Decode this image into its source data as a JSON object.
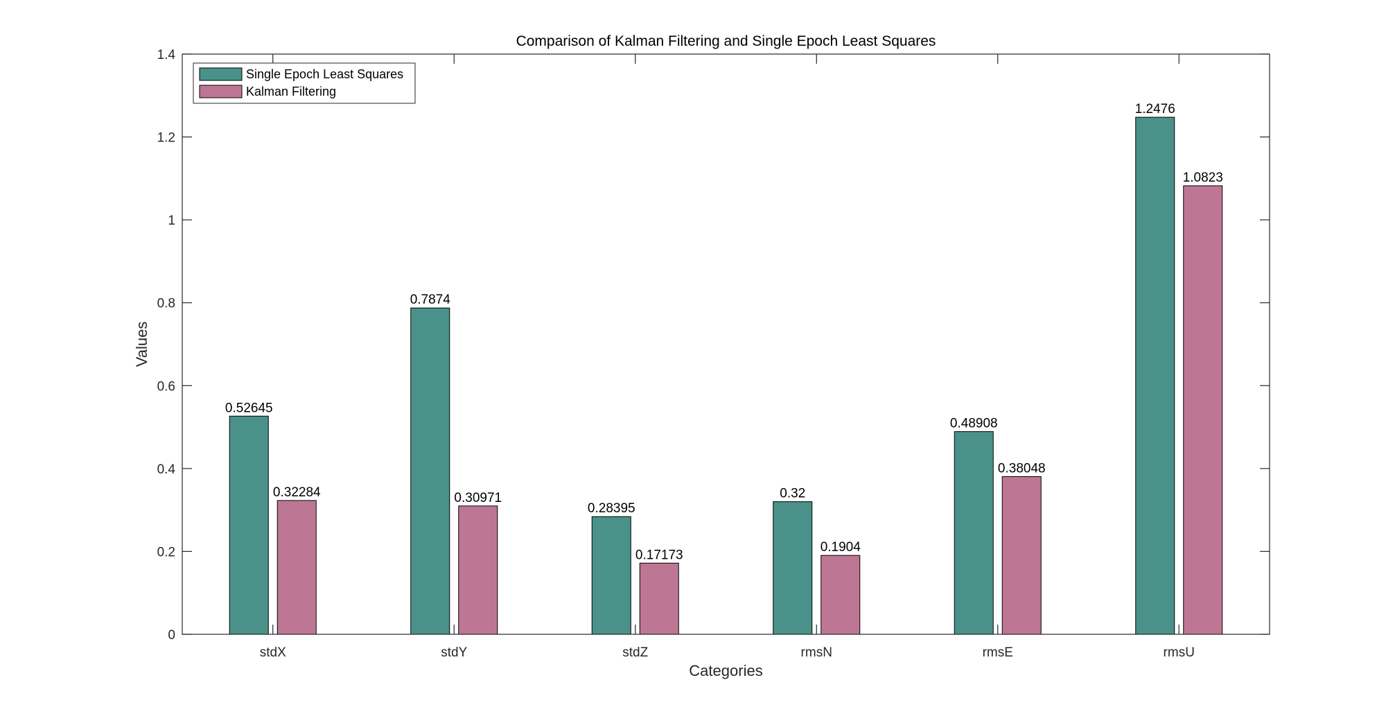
{
  "chart_data": {
    "type": "bar",
    "title": "Comparison of Kalman Filtering and Single Epoch Least Squares",
    "xlabel": "Categories",
    "ylabel": "Values",
    "categories": [
      "stdX",
      "stdY",
      "stdZ",
      "rmsN",
      "rmsE",
      "rmsU"
    ],
    "ylim": [
      0,
      1.4
    ],
    "yticks": [
      0,
      0.2,
      0.4,
      0.6,
      0.8,
      1,
      1.2,
      1.4
    ],
    "ytick_labels": [
      "0",
      "0.2",
      "0.4",
      "0.6",
      "0.8",
      "1",
      "1.2",
      "1.4"
    ],
    "grid": false,
    "legend_position": "top-left",
    "series": [
      {
        "name": "Single Epoch Least Squares",
        "color": "#4a9189",
        "values": [
          0.52645,
          0.7874,
          0.28395,
          0.32,
          0.48908,
          1.2476
        ],
        "labels": [
          "0.52645",
          "0.7874",
          "0.28395",
          "0.32",
          "0.48908",
          "1.2476"
        ]
      },
      {
        "name": "Kalman Filtering",
        "color": "#bd7794",
        "values": [
          0.32284,
          0.30971,
          0.17173,
          0.1904,
          0.38048,
          1.0823
        ],
        "labels": [
          "0.32284",
          "0.30971",
          "0.17173",
          "0.1904",
          "0.38048",
          "1.0823"
        ]
      }
    ]
  }
}
